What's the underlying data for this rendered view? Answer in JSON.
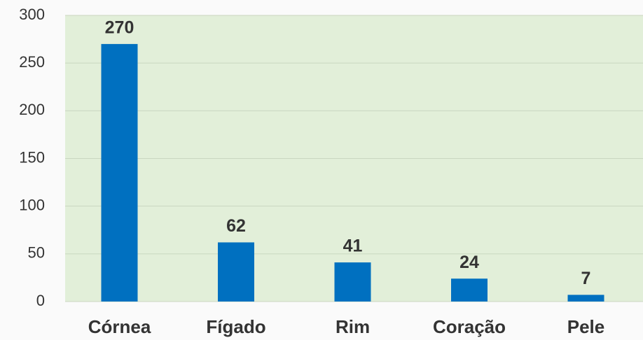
{
  "chart_data": {
    "type": "bar",
    "categories": [
      "Córnea",
      "Fígado",
      "Rim",
      "Coração",
      "Pele"
    ],
    "values": [
      270,
      62,
      41,
      24,
      7
    ],
    "color": "#0070c0",
    "ylim": [
      0,
      300
    ],
    "yticks": [
      0,
      50,
      100,
      150,
      200,
      250,
      300
    ],
    "grid": true
  }
}
